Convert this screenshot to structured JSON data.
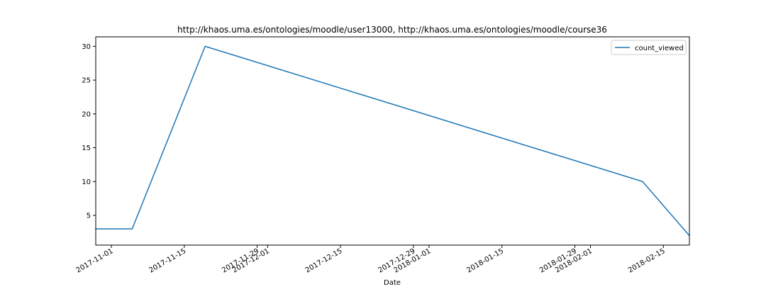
{
  "chart_data": {
    "type": "line",
    "title": "http://khaos.uma.es/ontologies/moodle/user13000, http://khaos.uma.es/ontologies/moodle/course36",
    "xlabel": "Date",
    "ylabel": "",
    "x_type": "date",
    "xlim": [
      "2017-10-29",
      "2018-02-20"
    ],
    "ylim": [
      0.6,
      31.4
    ],
    "x_ticks": [
      "2017-11-01",
      "2017-11-15",
      "2017-11-29",
      "2017-12-01",
      "2017-12-15",
      "2017-12-29",
      "2018-01-01",
      "2018-01-15",
      "2018-01-29",
      "2018-02-01",
      "2018-02-15"
    ],
    "y_ticks": [
      5,
      10,
      15,
      20,
      25,
      30
    ],
    "grid": false,
    "legend_position": "top-right",
    "series": [
      {
        "name": "count_viewed",
        "color": "#1f77b4",
        "x": [
          "2017-10-29",
          "2017-11-05",
          "2017-11-19",
          "2018-02-11",
          "2018-02-20"
        ],
        "y": [
          3,
          3,
          30,
          10,
          2
        ]
      }
    ]
  }
}
